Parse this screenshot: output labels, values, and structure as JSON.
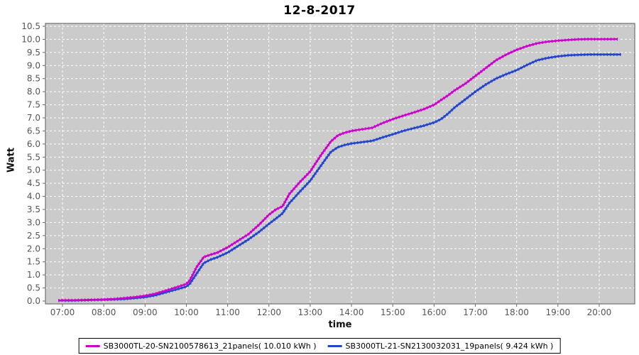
{
  "chart_data": {
    "type": "line",
    "title": "12-8-2017",
    "xlabel": "time",
    "ylabel": "Watt",
    "ylim": [
      0,
      10.5
    ],
    "y_ticks": [
      0,
      0.5,
      1,
      1.5,
      2,
      2.5,
      3,
      3.5,
      4,
      4.5,
      5,
      5.5,
      6,
      6.5,
      7,
      7.5,
      8,
      8.5,
      9,
      9.5,
      10,
      10.5
    ],
    "x_ticks": [
      {
        "hour": 7,
        "label": "07:00"
      },
      {
        "hour": 8,
        "label": "08:00"
      },
      {
        "hour": 9,
        "label": "09:00"
      },
      {
        "hour": 10,
        "label": "10:00"
      },
      {
        "hour": 11,
        "label": "11:00"
      },
      {
        "hour": 12,
        "label": "12:00"
      },
      {
        "hour": 13,
        "label": "13:00"
      },
      {
        "hour": 14,
        "label": "14:00"
      },
      {
        "hour": 15,
        "label": "15:00"
      },
      {
        "hour": 16,
        "label": "16:00"
      },
      {
        "hour": 17,
        "label": "17:00"
      },
      {
        "hour": 18,
        "label": "18:00"
      },
      {
        "hour": 19,
        "label": "19:00"
      },
      {
        "hour": 20,
        "label": "20:00"
      }
    ],
    "grid": true,
    "legend_position": "bottom",
    "colors": {
      "plot_bg": "#cbcbcb",
      "gridline": "#ffffff",
      "border": "#7f7f7f",
      "tick_text": "#555555"
    },
    "series": [
      {
        "name": "SB3000TL-20-SN2100578613_21panels( 10.010 kWh )",
        "total_kwh": "10.010",
        "color": "#cc00cc",
        "points": [
          [
            6.9,
            0.02
          ],
          [
            7.0,
            0.03
          ],
          [
            7.25,
            0.03
          ],
          [
            7.5,
            0.04
          ],
          [
            7.75,
            0.05
          ],
          [
            8.0,
            0.06
          ],
          [
            8.25,
            0.08
          ],
          [
            8.5,
            0.11
          ],
          [
            8.75,
            0.15
          ],
          [
            9.0,
            0.2
          ],
          [
            9.25,
            0.28
          ],
          [
            9.5,
            0.4
          ],
          [
            9.75,
            0.52
          ],
          [
            10.0,
            0.65
          ],
          [
            10.08,
            0.78
          ],
          [
            10.25,
            1.3
          ],
          [
            10.42,
            1.68
          ],
          [
            10.58,
            1.77
          ],
          [
            10.75,
            1.85
          ],
          [
            11.0,
            2.05
          ],
          [
            11.25,
            2.3
          ],
          [
            11.5,
            2.55
          ],
          [
            11.75,
            2.9
          ],
          [
            12.0,
            3.3
          ],
          [
            12.17,
            3.5
          ],
          [
            12.33,
            3.62
          ],
          [
            12.5,
            4.1
          ],
          [
            12.75,
            4.55
          ],
          [
            13.0,
            4.95
          ],
          [
            13.25,
            5.55
          ],
          [
            13.5,
            6.1
          ],
          [
            13.67,
            6.33
          ],
          [
            13.83,
            6.43
          ],
          [
            14.0,
            6.5
          ],
          [
            14.25,
            6.56
          ],
          [
            14.5,
            6.62
          ],
          [
            14.75,
            6.8
          ],
          [
            15.0,
            6.95
          ],
          [
            15.25,
            7.08
          ],
          [
            15.5,
            7.2
          ],
          [
            15.75,
            7.33
          ],
          [
            16.0,
            7.5
          ],
          [
            16.17,
            7.68
          ],
          [
            16.33,
            7.85
          ],
          [
            16.5,
            8.05
          ],
          [
            16.75,
            8.3
          ],
          [
            17.0,
            8.6
          ],
          [
            17.25,
            8.9
          ],
          [
            17.5,
            9.2
          ],
          [
            17.75,
            9.42
          ],
          [
            18.0,
            9.6
          ],
          [
            18.25,
            9.74
          ],
          [
            18.5,
            9.85
          ],
          [
            18.75,
            9.91
          ],
          [
            19.0,
            9.95
          ],
          [
            19.25,
            9.98
          ],
          [
            19.5,
            10.0
          ],
          [
            19.75,
            10.01
          ],
          [
            20.0,
            10.01
          ],
          [
            20.25,
            10.01
          ],
          [
            20.45,
            10.01
          ]
        ]
      },
      {
        "name": "SB3000TL-21-SN2130032031_19panels( 9.424 kWh )",
        "total_kwh": "9.424",
        "color": "#2244cc",
        "points": [
          [
            6.9,
            0.02
          ],
          [
            7.0,
            0.02
          ],
          [
            7.25,
            0.02
          ],
          [
            7.5,
            0.03
          ],
          [
            7.75,
            0.04
          ],
          [
            8.0,
            0.05
          ],
          [
            8.25,
            0.06
          ],
          [
            8.5,
            0.08
          ],
          [
            8.75,
            0.11
          ],
          [
            9.0,
            0.15
          ],
          [
            9.25,
            0.22
          ],
          [
            9.5,
            0.33
          ],
          [
            9.75,
            0.44
          ],
          [
            10.0,
            0.55
          ],
          [
            10.08,
            0.65
          ],
          [
            10.25,
            1.05
          ],
          [
            10.42,
            1.45
          ],
          [
            10.58,
            1.58
          ],
          [
            10.75,
            1.67
          ],
          [
            11.0,
            1.85
          ],
          [
            11.25,
            2.1
          ],
          [
            11.5,
            2.35
          ],
          [
            11.75,
            2.63
          ],
          [
            12.0,
            2.95
          ],
          [
            12.17,
            3.15
          ],
          [
            12.33,
            3.35
          ],
          [
            12.5,
            3.75
          ],
          [
            12.75,
            4.18
          ],
          [
            13.0,
            4.6
          ],
          [
            13.25,
            5.15
          ],
          [
            13.5,
            5.7
          ],
          [
            13.67,
            5.88
          ],
          [
            13.83,
            5.96
          ],
          [
            14.0,
            6.02
          ],
          [
            14.25,
            6.07
          ],
          [
            14.5,
            6.12
          ],
          [
            14.75,
            6.25
          ],
          [
            15.0,
            6.37
          ],
          [
            15.25,
            6.5
          ],
          [
            15.5,
            6.6
          ],
          [
            15.75,
            6.7
          ],
          [
            16.0,
            6.82
          ],
          [
            16.17,
            6.95
          ],
          [
            16.33,
            7.15
          ],
          [
            16.5,
            7.4
          ],
          [
            16.75,
            7.7
          ],
          [
            17.0,
            8.0
          ],
          [
            17.25,
            8.27
          ],
          [
            17.5,
            8.5
          ],
          [
            17.75,
            8.67
          ],
          [
            18.0,
            8.82
          ],
          [
            18.25,
            9.02
          ],
          [
            18.5,
            9.2
          ],
          [
            18.75,
            9.29
          ],
          [
            19.0,
            9.35
          ],
          [
            19.25,
            9.39
          ],
          [
            19.5,
            9.41
          ],
          [
            19.75,
            9.42
          ],
          [
            20.0,
            9.42
          ],
          [
            20.25,
            9.42
          ],
          [
            20.53,
            9.424
          ]
        ]
      }
    ]
  }
}
